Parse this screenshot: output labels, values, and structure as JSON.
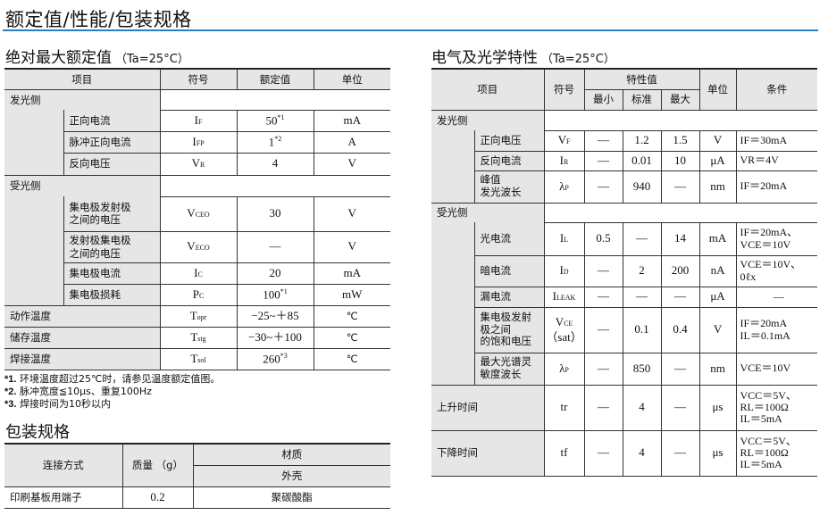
{
  "page_title": "额定值/性能/包装规格",
  "accent_color": "#2a7fc4",
  "abs_max": {
    "title": "绝对最大额定值",
    "condition": "（Ta=25°C）",
    "headers": [
      "项目",
      "符号",
      "额定值",
      "单位"
    ],
    "groups": [
      {
        "label": "发光侧",
        "rows": [
          {
            "item": "正向电流",
            "sym": "I",
            "sub": "F",
            "value": "50",
            "note": "*1",
            "unit": "mA"
          },
          {
            "item": "脉冲正向电流",
            "sym": "I",
            "sub": "FP",
            "value": "1",
            "note": "*2",
            "unit": "A"
          },
          {
            "item": "反向电压",
            "sym": "V",
            "sub": "R",
            "value": "4",
            "note": "",
            "unit": "V"
          }
        ]
      },
      {
        "label": "受光侧",
        "rows": [
          {
            "item": "集电极发射极之间的电压",
            "sym": "V",
            "sub": "CEO",
            "value": "30",
            "note": "",
            "unit": "V"
          },
          {
            "item": "发射极集电极之间的电压",
            "sym": "V",
            "sub": "ECO",
            "value": "—",
            "note": "",
            "unit": "V"
          },
          {
            "item": "集电极电流",
            "sym": "I",
            "sub": "C",
            "value": "20",
            "note": "",
            "unit": "mA"
          },
          {
            "item": "集电极损耗",
            "sym": "P",
            "sub": "C",
            "value": "100",
            "note": "*1",
            "unit": "mW"
          }
        ]
      }
    ],
    "singles": [
      {
        "item": "动作温度",
        "sym": "T",
        "sub": "opr",
        "value": "−25~＋85",
        "note": "",
        "unit": "℃"
      },
      {
        "item": "储存温度",
        "sym": "T",
        "sub": "stg",
        "value": "−30~＋100",
        "note": "",
        "unit": "℃"
      },
      {
        "item": "焊接温度",
        "sym": "T",
        "sub": "sol",
        "value": "260",
        "note": "*3",
        "unit": "℃"
      }
    ],
    "notes": [
      {
        "mark": "*1.",
        "text": "环境温度超过25℃时，请参见温度额定值图。"
      },
      {
        "mark": "*2.",
        "text": "脉冲宽度≦10μs、重复100Hz"
      },
      {
        "mark": "*3.",
        "text": "焊接时间为10秒以内"
      }
    ]
  },
  "electrical": {
    "title": "电气及光学特性",
    "condition": "（Ta=25°C）",
    "headers": {
      "item": "项目",
      "symbol": "符号",
      "char": "特性值",
      "min": "最小",
      "typ": "标准",
      "max": "最大",
      "unit": "单位",
      "cond": "条件"
    },
    "groups": [
      {
        "label": "发光侧",
        "rows": [
          {
            "item": "正向电压",
            "sym": "V",
            "sub": "F",
            "min": "—",
            "typ": "1.2",
            "max": "1.5",
            "unit": "V",
            "cond": [
              "IF＝30mA"
            ]
          },
          {
            "item": "反向电流",
            "sym": "I",
            "sub": "R",
            "min": "—",
            "typ": "0.01",
            "max": "10",
            "unit": "μA",
            "cond": [
              "VR＝4V"
            ]
          },
          {
            "item": "峰值\n发光波长",
            "sym": "λ",
            "sub": "P",
            "min": "—",
            "typ": "940",
            "max": "—",
            "unit": "nm",
            "cond": [
              "IF＝20mA"
            ]
          }
        ]
      },
      {
        "label": "受光侧",
        "rows": [
          {
            "item": "光电流",
            "sym": "I",
            "sub": "L",
            "min": "0.5",
            "typ": "—",
            "max": "14",
            "unit": "mA",
            "cond": [
              "IF＝20mA、",
              "VCE＝10V"
            ]
          },
          {
            "item": "暗电流",
            "sym": "I",
            "sub": "D",
            "min": "—",
            "typ": "2",
            "max": "200",
            "unit": "nA",
            "cond": [
              "VCE＝10V、",
              "0ℓx"
            ]
          },
          {
            "item": "漏电流",
            "sym": "I",
            "sub": "LEAK",
            "min": "—",
            "typ": "—",
            "max": "—",
            "unit": "μA",
            "cond": [
              "—"
            ]
          },
          {
            "item": "集电极发射\n极之间\n的饱和电压",
            "sym": "V",
            "sub": "CE",
            "sym2": "（sat）",
            "min": "—",
            "typ": "0.1",
            "max": "0.4",
            "unit": "V",
            "cond": [
              "IF＝20mA",
              "IL＝0.1mA"
            ]
          },
          {
            "item": "最大光谱灵\n敏度波长",
            "sym": "λ",
            "sub": "P",
            "min": "—",
            "typ": "850",
            "max": "—",
            "unit": "nm",
            "cond": [
              "VCE＝10V"
            ]
          }
        ]
      }
    ],
    "singles": [
      {
        "item": "上升时间",
        "sym": "tr",
        "sub": "",
        "min": "—",
        "typ": "4",
        "max": "—",
        "unit": "μs",
        "cond": [
          "VCC＝5V、",
          "RL＝100Ω",
          "IL＝5mA"
        ]
      },
      {
        "item": "下降时间",
        "sym": "tf",
        "sub": "",
        "min": "—",
        "typ": "4",
        "max": "—",
        "unit": "μs",
        "cond": [
          "VCC＝5V、",
          "RL＝100Ω",
          "IL＝5mA"
        ]
      }
    ]
  },
  "packaging": {
    "title": "包装规格",
    "headers": {
      "connection": "连接方式",
      "mass": "质量 （g）",
      "material": "材质",
      "case": "外壳"
    },
    "row": {
      "connection": "印刷基板用端子",
      "mass": "0.2",
      "case": "聚碳酸酯"
    }
  }
}
